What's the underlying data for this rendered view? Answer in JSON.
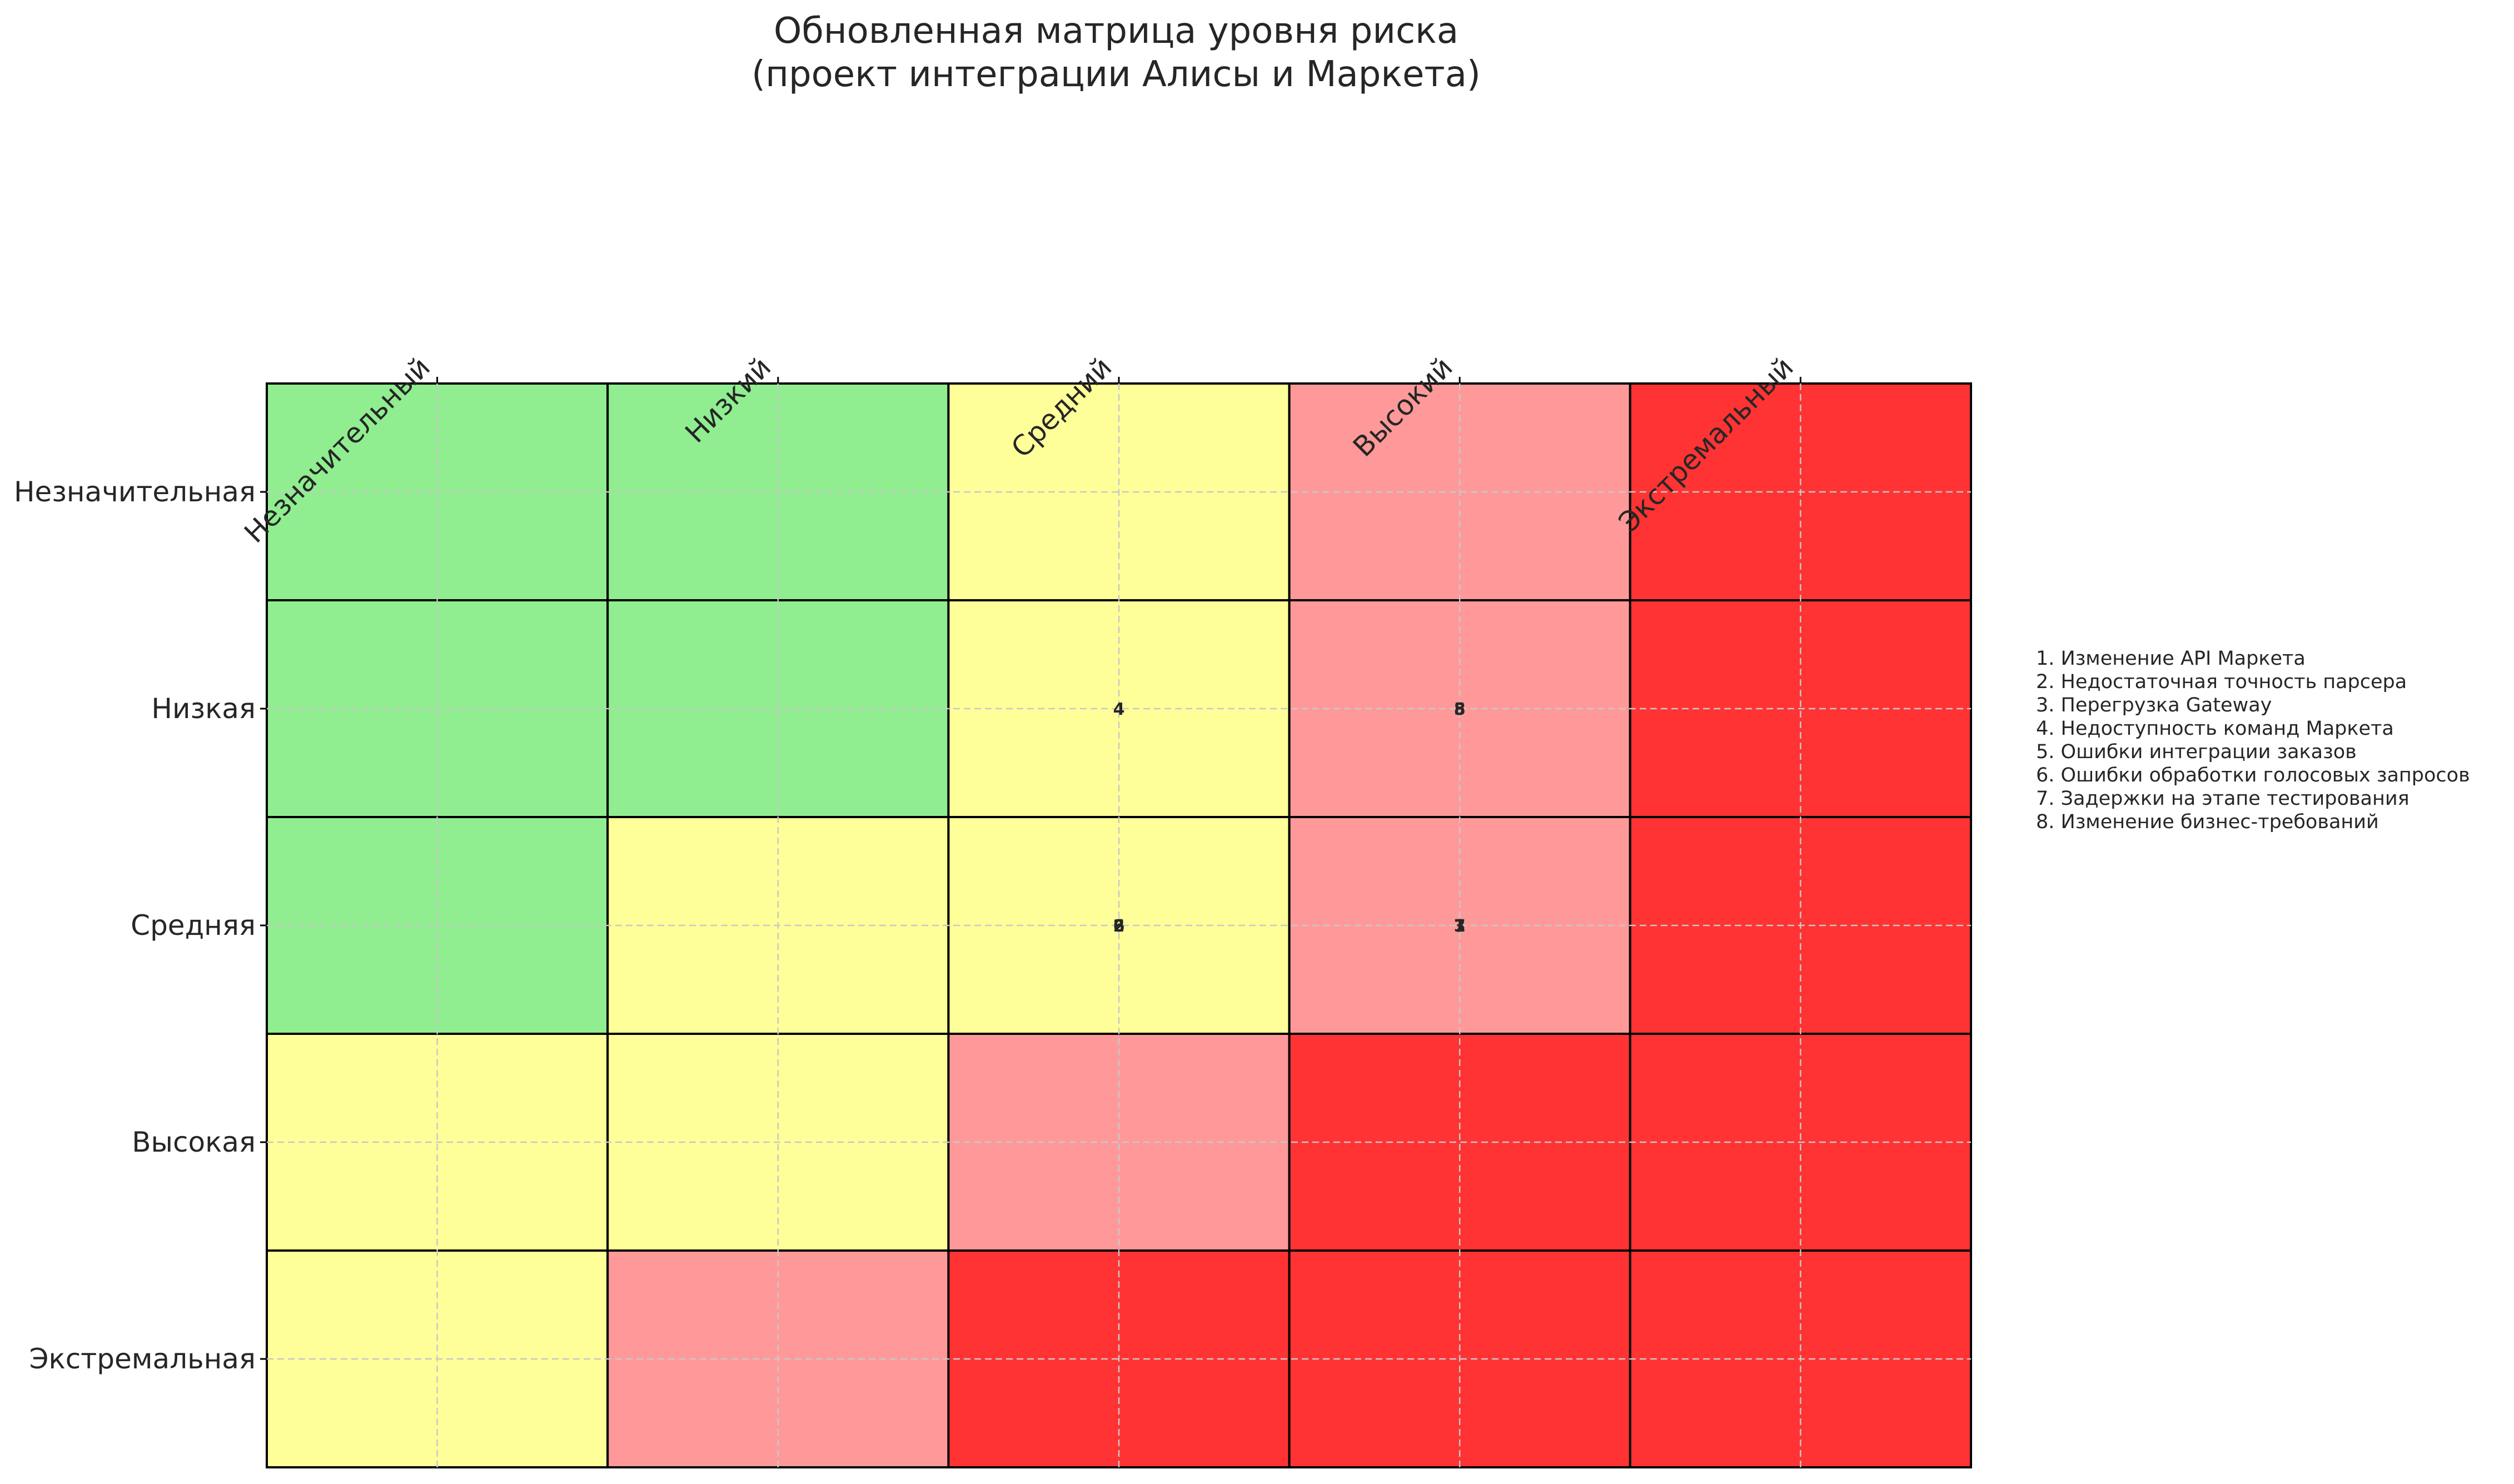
{
  "chart_data": {
    "type": "heatmap",
    "title_lines": [
      "Обновленная матрица уровня риска",
      "(проект интеграции Алисы и Маркета)"
    ],
    "x_categories": [
      "Незначительный",
      "Низкий",
      "Средний",
      "Высокий",
      "Экстремальный"
    ],
    "y_categories": [
      "Незначительная",
      "Низкая",
      "Средняя",
      "Высокая",
      "Экстремальная"
    ],
    "grid": true,
    "levels": [
      "green",
      "yellow",
      "pink",
      "red"
    ],
    "level_matrix": [
      [
        "green",
        "green",
        "yellow",
        "pink",
        "red"
      ],
      [
        "green",
        "green",
        "yellow",
        "pink",
        "red"
      ],
      [
        "green",
        "yellow",
        "yellow",
        "pink",
        "red"
      ],
      [
        "yellow",
        "yellow",
        "pink",
        "red",
        "red"
      ],
      [
        "yellow",
        "pink",
        "red",
        "red",
        "red"
      ]
    ],
    "colors": {
      "green": "#90ee90",
      "yellow": "#ffff99",
      "pink": "#ff9999",
      "red": "#ff3333",
      "edge": "#000000",
      "grid": "#c8c8c8",
      "text": "#262626"
    },
    "risk_points": [
      {
        "label": "1",
        "impact": "Высокий",
        "likelihood": "Средняя"
      },
      {
        "label": "2",
        "impact": "Средний",
        "likelihood": "Средняя"
      },
      {
        "label": "3",
        "impact": "Высокий",
        "likelihood": "Средняя"
      },
      {
        "label": "4",
        "impact": "Средний",
        "likelihood": "Низкая"
      },
      {
        "label": "5",
        "impact": "Высокий",
        "likelihood": "Низкая"
      },
      {
        "label": "6",
        "impact": "Средний",
        "likelihood": "Средняя"
      },
      {
        "label": "7",
        "impact": "Высокий",
        "likelihood": "Средняя"
      },
      {
        "label": "8",
        "impact": "Высокий",
        "likelihood": "Низкая"
      }
    ],
    "legend_position": "right",
    "legend": [
      "1. Изменение API Маркета",
      "2. Недостаточная точность парсера",
      "3. Перегрузка Gateway",
      "4. Недоступность команд Маркета",
      "5. Ошибки интеграции заказов",
      "6. Ошибки обработки голосовых запросов",
      "7. Задержки на этапе тестирования",
      "8. Изменение бизнес-требований"
    ]
  }
}
